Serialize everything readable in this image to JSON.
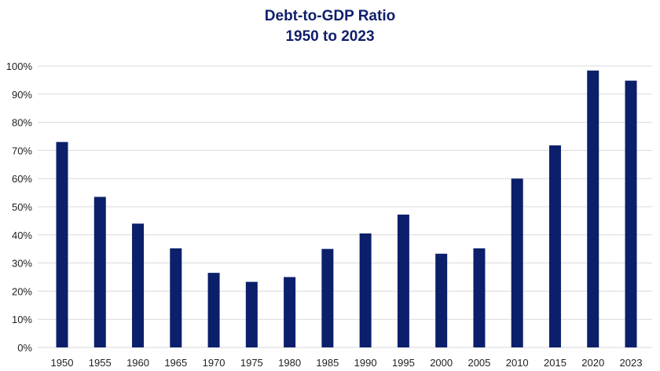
{
  "chart_data": {
    "type": "bar",
    "title": "Debt-to-GDP Ratio",
    "subtitle": "1950 to 2023",
    "xlabel": "",
    "ylabel": "",
    "categories": [
      "1950",
      "1955",
      "1960",
      "1965",
      "1970",
      "1975",
      "1980",
      "1985",
      "1990",
      "1995",
      "2000",
      "2005",
      "2010",
      "2015",
      "2020",
      "2023"
    ],
    "values": [
      73,
      53.5,
      44,
      35.2,
      26.5,
      23.3,
      25,
      35,
      40.5,
      47.2,
      33.3,
      35.2,
      60,
      71.8,
      98.4,
      94.8
    ],
    "ylim": [
      0,
      100
    ],
    "yticks": [
      "0%",
      "10%",
      "20%",
      "30%",
      "40%",
      "50%",
      "60%",
      "70%",
      "80%",
      "90%",
      "100%"
    ],
    "grid": true,
    "legend": "none",
    "bar_color": "#0b1f6b",
    "grid_color": "#d9d9d9"
  }
}
